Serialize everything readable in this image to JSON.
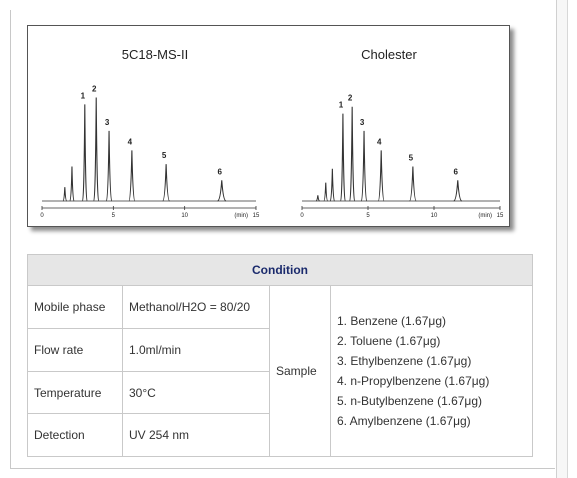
{
  "chart_data": [
    {
      "type": "line",
      "title": "5C18-MS-II",
      "x_unit_label": "(min)",
      "x_ticks": [
        0,
        5,
        10,
        15
      ],
      "xlim": [
        0,
        15
      ],
      "peaks": [
        {
          "label": "",
          "x": 1.6,
          "h": 0.12
        },
        {
          "label": "",
          "x": 2.1,
          "h": 0.3
        },
        {
          "label": "1",
          "x": 3.0,
          "h": 0.84
        },
        {
          "label": "2",
          "x": 3.8,
          "h": 0.9
        },
        {
          "label": "3",
          "x": 4.7,
          "h": 0.61
        },
        {
          "label": "4",
          "x": 6.3,
          "h": 0.44
        },
        {
          "label": "5",
          "x": 8.7,
          "h": 0.32
        },
        {
          "label": "6",
          "x": 12.6,
          "h": 0.18
        }
      ]
    },
    {
      "type": "line",
      "title": "Cholester",
      "x_unit_label": "(min)",
      "x_ticks": [
        0,
        5,
        10,
        15
      ],
      "xlim": [
        0,
        15
      ],
      "peaks": [
        {
          "label": "",
          "x": 1.2,
          "h": 0.05
        },
        {
          "label": "",
          "x": 1.8,
          "h": 0.16
        },
        {
          "label": "",
          "x": 2.3,
          "h": 0.28
        },
        {
          "label": "1",
          "x": 3.1,
          "h": 0.76
        },
        {
          "label": "2",
          "x": 3.8,
          "h": 0.82
        },
        {
          "label": "3",
          "x": 4.7,
          "h": 0.61
        },
        {
          "label": "4",
          "x": 6.0,
          "h": 0.44
        },
        {
          "label": "5",
          "x": 8.4,
          "h": 0.3
        },
        {
          "label": "6",
          "x": 11.8,
          "h": 0.18
        }
      ]
    }
  ],
  "condition": {
    "header": "Condition",
    "rows": [
      {
        "label": "Mobile phase",
        "value": "Methanol/H2O = 80/20"
      },
      {
        "label": "Flow rate",
        "value": "1.0ml/min"
      },
      {
        "label": "Temperature",
        "value": "30°C"
      },
      {
        "label": "Detection",
        "value": "UV 254 nm"
      }
    ],
    "sample_label": "Sample",
    "samples": [
      "1.  Benzene (1.67μg)",
      "2.  Toluene (1.67μg)",
      "3.  Ethylbenzene (1.67μg)",
      "4.  n-Propylbenzene (1.67μg)",
      "5.  n-Butylbenzene (1.67μg)",
      "6.  Amylbenzene (1.67μg)"
    ]
  }
}
